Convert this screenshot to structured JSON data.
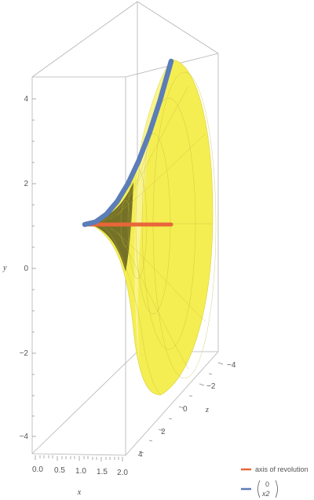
{
  "chart_data": {
    "type": "surface3d",
    "title": "",
    "axes": {
      "x": {
        "label": "x",
        "range": [
          0,
          2
        ],
        "ticks": [
          "0.0",
          "0.5",
          "1.0",
          "1.5",
          "2.0"
        ]
      },
      "y": {
        "label": "y",
        "range": [
          -4.5,
          4.5
        ],
        "ticks": [
          "4",
          "2",
          "0",
          "−2",
          "−4"
        ]
      },
      "z": {
        "label": "z",
        "range": [
          -4,
          4
        ],
        "ticks": [
          "−4",
          "−2",
          "0",
          "2",
          "4"
        ]
      }
    },
    "surface": {
      "description_type": "surface of revolution of y = x^2 about the x-axis",
      "color": "#F2EC4A"
    },
    "series": [
      {
        "name": "axis of revolution",
        "color": "#E8663A",
        "points": [
          [
            0,
            0,
            0
          ],
          [
            1,
            0,
            0
          ],
          [
            2,
            0,
            0
          ]
        ]
      },
      {
        "name_top": "0",
        "name_bottom": "x2",
        "color": "#5B7DB8",
        "points": [
          [
            0,
            0,
            0
          ],
          [
            0.25,
            0.0625,
            0
          ],
          [
            0.5,
            0.25,
            0
          ],
          [
            0.75,
            0.5625,
            0
          ],
          [
            1.0,
            1.0,
            0
          ],
          [
            1.25,
            1.5625,
            0
          ],
          [
            1.5,
            2.25,
            0
          ],
          [
            1.75,
            3.0625,
            0
          ],
          [
            2.0,
            4.0,
            0
          ]
        ]
      }
    ],
    "legend": {
      "placement": "bottom-right"
    },
    "grid": false
  }
}
